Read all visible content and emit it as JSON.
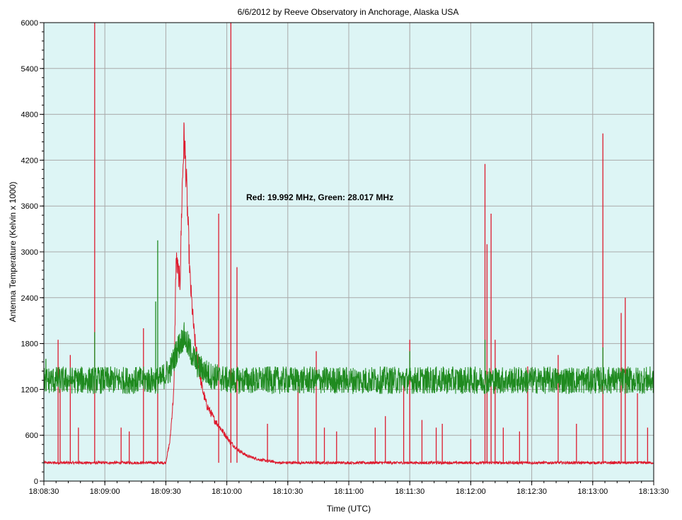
{
  "chart_data": {
    "type": "line",
    "title": "6/6/2012  by  Reeve Observatory  in  Anchorage, Alaska  USA",
    "xlabel": "Time (UTC)",
    "ylabel": "Antenna Temperature (Kelvin x 1000)",
    "annotation": "Red: 19.992 MHz, Green: 28.017 MHz",
    "x_range_seconds": [
      0,
      300
    ],
    "ylim": [
      0,
      6000
    ],
    "grid": true,
    "x_ticks": [
      {
        "t": 0,
        "label": "18:08:30"
      },
      {
        "t": 30,
        "label": "18:09:00"
      },
      {
        "t": 60,
        "label": "18:09:30"
      },
      {
        "t": 90,
        "label": "18:10:00"
      },
      {
        "t": 120,
        "label": "18:10:30"
      },
      {
        "t": 150,
        "label": "18:11:00"
      },
      {
        "t": 180,
        "label": "18:11:30"
      },
      {
        "t": 210,
        "label": "18:12:00"
      },
      {
        "t": 240,
        "label": "18:12:30"
      },
      {
        "t": 270,
        "label": "18:13:00"
      },
      {
        "t": 300,
        "label": "18:13:30"
      }
    ],
    "y_ticks": [
      0,
      600,
      1200,
      1800,
      2400,
      3000,
      3600,
      4200,
      4800,
      5400,
      6000
    ],
    "colors": {
      "plot_background": "#ddf5f5",
      "grid": "#a9a9a9",
      "red": "#dd1b2e",
      "green": "#1f8a1f"
    },
    "series": [
      {
        "color": "red",
        "baseline": 240,
        "burst": [
          {
            "t": 60,
            "v": 250
          },
          {
            "t": 62,
            "v": 520
          },
          {
            "t": 64,
            "v": 1200
          },
          {
            "t": 65,
            "v": 2900
          },
          {
            "t": 67,
            "v": 2600
          },
          {
            "t": 68,
            "v": 3800
          },
          {
            "t": 69,
            "v": 4550
          },
          {
            "t": 70,
            "v": 4000
          },
          {
            "t": 71,
            "v": 3300
          },
          {
            "t": 72,
            "v": 2600
          },
          {
            "t": 74,
            "v": 1900
          },
          {
            "t": 76,
            "v": 1500
          },
          {
            "t": 78,
            "v": 1200
          },
          {
            "t": 80,
            "v": 1000
          },
          {
            "t": 84,
            "v": 800
          },
          {
            "t": 88,
            "v": 650
          },
          {
            "t": 92,
            "v": 500
          },
          {
            "t": 96,
            "v": 400
          },
          {
            "t": 100,
            "v": 330
          },
          {
            "t": 106,
            "v": 280
          },
          {
            "t": 114,
            "v": 250
          }
        ],
        "spikes": [
          {
            "t": 7,
            "v": 1850
          },
          {
            "t": 8,
            "v": 1200
          },
          {
            "t": 13,
            "v": 1650
          },
          {
            "t": 17,
            "v": 700
          },
          {
            "t": 25,
            "v": 6000
          },
          {
            "t": 38,
            "v": 700
          },
          {
            "t": 42,
            "v": 650
          },
          {
            "t": 49,
            "v": 2000
          },
          {
            "t": 56,
            "v": 1450
          },
          {
            "t": 86,
            "v": 3500
          },
          {
            "t": 92,
            "v": 6000
          },
          {
            "t": 95,
            "v": 2800
          },
          {
            "t": 110,
            "v": 750
          },
          {
            "t": 125,
            "v": 1350
          },
          {
            "t": 134,
            "v": 1700
          },
          {
            "t": 138,
            "v": 700
          },
          {
            "t": 144,
            "v": 650
          },
          {
            "t": 163,
            "v": 700
          },
          {
            "t": 168,
            "v": 850
          },
          {
            "t": 177,
            "v": 1300
          },
          {
            "t": 180,
            "v": 1850
          },
          {
            "t": 186,
            "v": 800
          },
          {
            "t": 193,
            "v": 700
          },
          {
            "t": 196,
            "v": 750
          },
          {
            "t": 210,
            "v": 550
          },
          {
            "t": 217,
            "v": 4150
          },
          {
            "t": 218,
            "v": 3100
          },
          {
            "t": 220,
            "v": 3500
          },
          {
            "t": 222,
            "v": 1850
          },
          {
            "t": 226,
            "v": 700
          },
          {
            "t": 234,
            "v": 650
          },
          {
            "t": 238,
            "v": 1500
          },
          {
            "t": 253,
            "v": 1650
          },
          {
            "t": 262,
            "v": 750
          },
          {
            "t": 275,
            "v": 4550
          },
          {
            "t": 284,
            "v": 2200
          },
          {
            "t": 286,
            "v": 2400
          },
          {
            "t": 292,
            "v": 1150
          },
          {
            "t": 297,
            "v": 700
          }
        ]
      },
      {
        "color": "green",
        "baseline": 1320,
        "noise_amplitude": 180,
        "burst": [
          {
            "t": 58,
            "v": 1350
          },
          {
            "t": 62,
            "v": 1450
          },
          {
            "t": 66,
            "v": 1750
          },
          {
            "t": 69,
            "v": 1900
          },
          {
            "t": 72,
            "v": 1700
          },
          {
            "t": 76,
            "v": 1500
          },
          {
            "t": 82,
            "v": 1380
          },
          {
            "t": 90,
            "v": 1330
          }
        ],
        "spikes": [
          {
            "t": 1,
            "v": 1600
          },
          {
            "t": 25,
            "v": 1950
          },
          {
            "t": 55,
            "v": 2350
          },
          {
            "t": 56,
            "v": 3150
          },
          {
            "t": 85,
            "v": 1500
          },
          {
            "t": 110,
            "v": 1500
          },
          {
            "t": 180,
            "v": 1700
          },
          {
            "t": 217,
            "v": 1850
          },
          {
            "t": 275,
            "v": 1750
          }
        ]
      }
    ]
  }
}
